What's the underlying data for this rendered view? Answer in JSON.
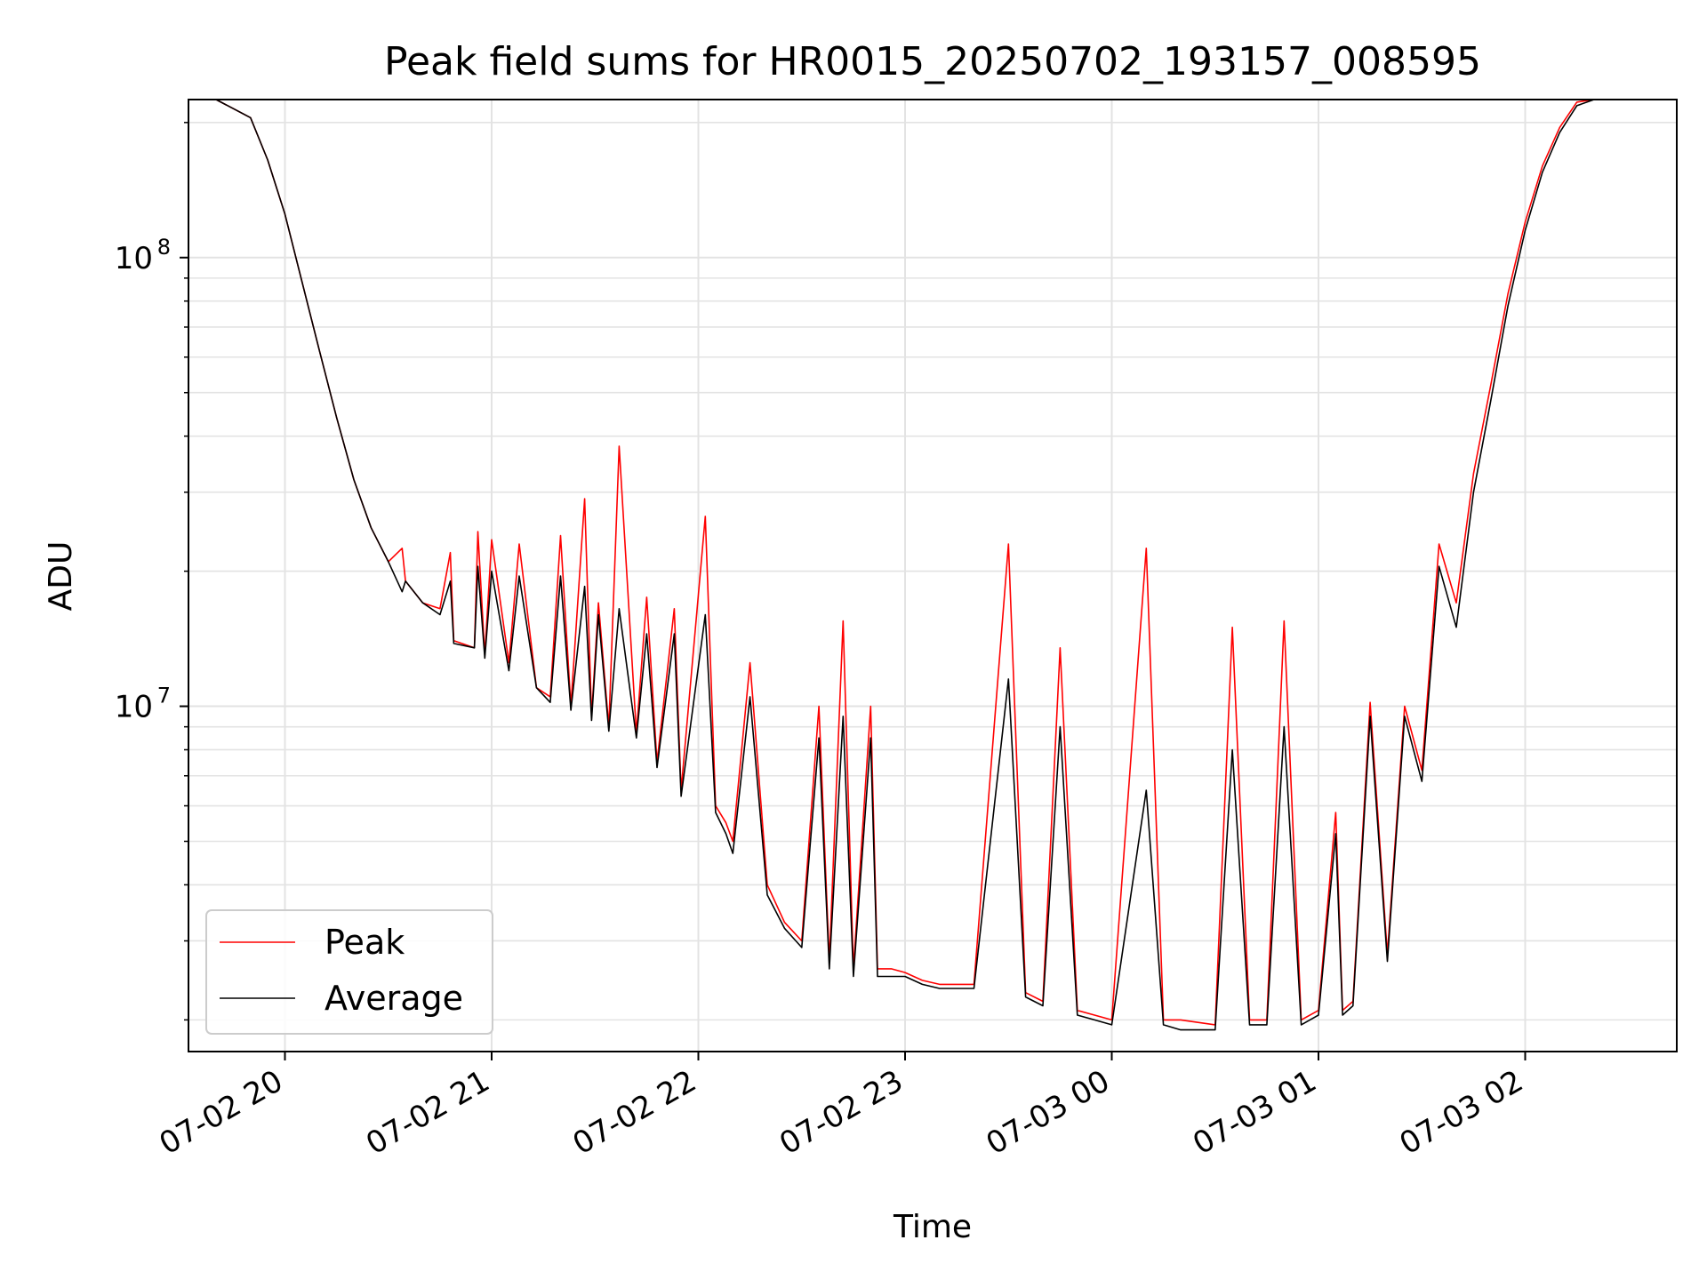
{
  "chart_data": {
    "type": "line",
    "title": "Peak field sums for HR0015_20250702_193157_008595",
    "xlabel": "Time",
    "ylabel": "ADU",
    "yscale": "log",
    "grid": true,
    "legend_position": "lower-left",
    "xlim": [
      "2025-07-02 19:32",
      "2025-07-03 02:44"
    ],
    "ylim": [
      1700000,
      225000000
    ],
    "x_ticks": [
      {
        "t": "2025-07-02 20:00",
        "label": "07-02 20"
      },
      {
        "t": "2025-07-02 21:00",
        "label": "07-02 21"
      },
      {
        "t": "2025-07-02 22:00",
        "label": "07-02 22"
      },
      {
        "t": "2025-07-02 23:00",
        "label": "07-02 23"
      },
      {
        "t": "2025-07-03 00:00",
        "label": "07-03 00"
      },
      {
        "t": "2025-07-03 01:00",
        "label": "07-03 01"
      },
      {
        "t": "2025-07-03 02:00",
        "label": "07-03 02"
      }
    ],
    "y_ticks": [
      {
        "value": 10000000,
        "base": "10",
        "exp": "7"
      },
      {
        "value": 100000000,
        "base": "10",
        "exp": "8"
      }
    ],
    "series": [
      {
        "name": "Peak",
        "color": "#ff0000",
        "x": [
          "2025-07-02 19:40",
          "2025-07-02 19:50",
          "2025-07-02 19:55",
          "2025-07-02 20:00",
          "2025-07-02 20:05",
          "2025-07-02 20:10",
          "2025-07-02 20:15",
          "2025-07-02 20:20",
          "2025-07-02 20:25",
          "2025-07-02 20:30",
          "2025-07-02 20:34",
          "2025-07-02 20:35",
          "2025-07-02 20:40",
          "2025-07-02 20:45",
          "2025-07-02 20:48",
          "2025-07-02 20:49",
          "2025-07-02 20:55",
          "2025-07-02 20:56",
          "2025-07-02 20:58",
          "2025-07-02 21:00",
          "2025-07-02 21:05",
          "2025-07-02 21:08",
          "2025-07-02 21:13",
          "2025-07-02 21:17",
          "2025-07-02 21:20",
          "2025-07-02 21:23",
          "2025-07-02 21:27",
          "2025-07-02 21:29",
          "2025-07-02 21:31",
          "2025-07-02 21:34",
          "2025-07-02 21:37",
          "2025-07-02 21:42",
          "2025-07-02 21:45",
          "2025-07-02 21:48",
          "2025-07-02 21:53",
          "2025-07-02 21:55",
          "2025-07-02 22:02",
          "2025-07-02 22:05",
          "2025-07-02 22:08",
          "2025-07-02 22:10",
          "2025-07-02 22:15",
          "2025-07-02 22:20",
          "2025-07-02 22:25",
          "2025-07-02 22:30",
          "2025-07-02 22:35",
          "2025-07-02 22:38",
          "2025-07-02 22:42",
          "2025-07-02 22:45",
          "2025-07-02 22:50",
          "2025-07-02 22:52",
          "2025-07-02 22:56",
          "2025-07-02 23:00",
          "2025-07-02 23:05",
          "2025-07-02 23:10",
          "2025-07-02 23:20",
          "2025-07-02 23:30",
          "2025-07-02 23:35",
          "2025-07-02 23:40",
          "2025-07-02 23:45",
          "2025-07-02 23:50",
          "2025-07-02 23:55",
          "2025-07-03 00:00",
          "2025-07-03 00:10",
          "2025-07-03 00:15",
          "2025-07-03 00:20",
          "2025-07-03 00:30",
          "2025-07-03 00:35",
          "2025-07-03 00:40",
          "2025-07-03 00:45",
          "2025-07-03 00:50",
          "2025-07-03 00:55",
          "2025-07-03 01:00",
          "2025-07-03 01:05",
          "2025-07-03 01:07",
          "2025-07-03 01:10",
          "2025-07-03 01:15",
          "2025-07-03 01:20",
          "2025-07-03 01:25",
          "2025-07-03 01:30",
          "2025-07-03 01:35",
          "2025-07-03 01:40",
          "2025-07-03 01:45",
          "2025-07-03 01:50",
          "2025-07-03 01:55",
          "2025-07-03 02:00",
          "2025-07-03 02:05",
          "2025-07-03 02:10",
          "2025-07-03 02:15",
          "2025-07-03 02:20"
        ],
        "values": [
          225000000,
          205000000,
          165000000,
          125000000,
          88000000,
          62000000,
          44000000,
          32000000,
          25000000,
          21000000,
          22500000,
          19000000,
          17000000,
          16500000,
          22000000,
          14000000,
          13500000,
          24500000,
          13000000,
          23500000,
          12500000,
          23000000,
          11000000,
          10500000,
          24000000,
          10000000,
          29000000,
          9500000,
          17000000,
          9000000,
          38000000,
          8700000,
          17500000,
          7500000,
          16500000,
          6500000,
          26500000,
          6000000,
          5500000,
          5000000,
          12500000,
          4000000,
          3300000,
          3000000,
          10000000,
          2700000,
          15500000,
          2600000,
          10000000,
          2600000,
          2600000,
          2550000,
          2450000,
          2400000,
          2400000,
          23000000,
          2300000,
          2200000,
          13500000,
          2100000,
          2050000,
          2000000,
          22500000,
          2000000,
          2000000,
          1950000,
          15000000,
          2000000,
          2000000,
          15500000,
          2000000,
          2100000,
          5800000,
          2100000,
          2200000,
          10200000,
          2800000,
          10000000,
          7200000,
          23000000,
          17000000,
          33000000,
          52000000,
          83000000,
          120000000,
          160000000,
          195000000,
          222000000,
          225000000
        ]
      },
      {
        "name": "Average",
        "color": "#000000",
        "x": [
          "2025-07-02 19:40",
          "2025-07-02 19:50",
          "2025-07-02 19:55",
          "2025-07-02 20:00",
          "2025-07-02 20:05",
          "2025-07-02 20:10",
          "2025-07-02 20:15",
          "2025-07-02 20:20",
          "2025-07-02 20:25",
          "2025-07-02 20:30",
          "2025-07-02 20:34",
          "2025-07-02 20:35",
          "2025-07-02 20:40",
          "2025-07-02 20:45",
          "2025-07-02 20:48",
          "2025-07-02 20:49",
          "2025-07-02 20:55",
          "2025-07-02 20:56",
          "2025-07-02 20:58",
          "2025-07-02 21:00",
          "2025-07-02 21:05",
          "2025-07-02 21:08",
          "2025-07-02 21:13",
          "2025-07-02 21:17",
          "2025-07-02 21:20",
          "2025-07-02 21:23",
          "2025-07-02 21:27",
          "2025-07-02 21:29",
          "2025-07-02 21:31",
          "2025-07-02 21:34",
          "2025-07-02 21:37",
          "2025-07-02 21:42",
          "2025-07-02 21:45",
          "2025-07-02 21:48",
          "2025-07-02 21:53",
          "2025-07-02 21:55",
          "2025-07-02 22:02",
          "2025-07-02 22:05",
          "2025-07-02 22:08",
          "2025-07-02 22:10",
          "2025-07-02 22:15",
          "2025-07-02 22:20",
          "2025-07-02 22:25",
          "2025-07-02 22:30",
          "2025-07-02 22:35",
          "2025-07-02 22:38",
          "2025-07-02 22:42",
          "2025-07-02 22:45",
          "2025-07-02 22:50",
          "2025-07-02 22:52",
          "2025-07-02 22:56",
          "2025-07-02 23:00",
          "2025-07-02 23:05",
          "2025-07-02 23:10",
          "2025-07-02 23:20",
          "2025-07-02 23:30",
          "2025-07-02 23:35",
          "2025-07-02 23:40",
          "2025-07-02 23:45",
          "2025-07-02 23:50",
          "2025-07-02 23:55",
          "2025-07-03 00:00",
          "2025-07-03 00:10",
          "2025-07-03 00:15",
          "2025-07-03 00:20",
          "2025-07-03 00:30",
          "2025-07-03 00:35",
          "2025-07-03 00:40",
          "2025-07-03 00:45",
          "2025-07-03 00:50",
          "2025-07-03 00:55",
          "2025-07-03 01:00",
          "2025-07-03 01:05",
          "2025-07-03 01:07",
          "2025-07-03 01:10",
          "2025-07-03 01:15",
          "2025-07-03 01:20",
          "2025-07-03 01:25",
          "2025-07-03 01:30",
          "2025-07-03 01:35",
          "2025-07-03 01:40",
          "2025-07-03 01:45",
          "2025-07-03 01:50",
          "2025-07-03 01:55",
          "2025-07-03 02:00",
          "2025-07-03 02:05",
          "2025-07-03 02:10",
          "2025-07-03 02:15",
          "2025-07-03 02:20"
        ],
        "values": [
          225000000,
          205000000,
          165000000,
          125000000,
          88000000,
          62000000,
          44000000,
          32000000,
          25000000,
          21000000,
          18000000,
          19000000,
          17000000,
          16000000,
          19000000,
          13800000,
          13500000,
          20500000,
          12800000,
          20000000,
          12000000,
          19500000,
          11000000,
          10200000,
          19500000,
          9800000,
          18500000,
          9300000,
          16000000,
          8800000,
          16500000,
          8500000,
          14500000,
          7300000,
          14500000,
          6300000,
          16000000,
          5800000,
          5200000,
          4700000,
          10500000,
          3800000,
          3200000,
          2900000,
          8500000,
          2600000,
          9500000,
          2500000,
          8500000,
          2500000,
          2500000,
          2500000,
          2400000,
          2350000,
          2350000,
          11500000,
          2250000,
          2150000,
          9000000,
          2050000,
          2000000,
          1950000,
          6500000,
          1950000,
          1900000,
          1900000,
          8000000,
          1950000,
          1950000,
          9000000,
          1950000,
          2050000,
          5200000,
          2050000,
          2150000,
          9500000,
          2700000,
          9500000,
          6800000,
          20500000,
          15000000,
          30000000,
          48000000,
          78000000,
          115000000,
          155000000,
          190000000,
          218000000,
          225000000
        ]
      }
    ]
  }
}
